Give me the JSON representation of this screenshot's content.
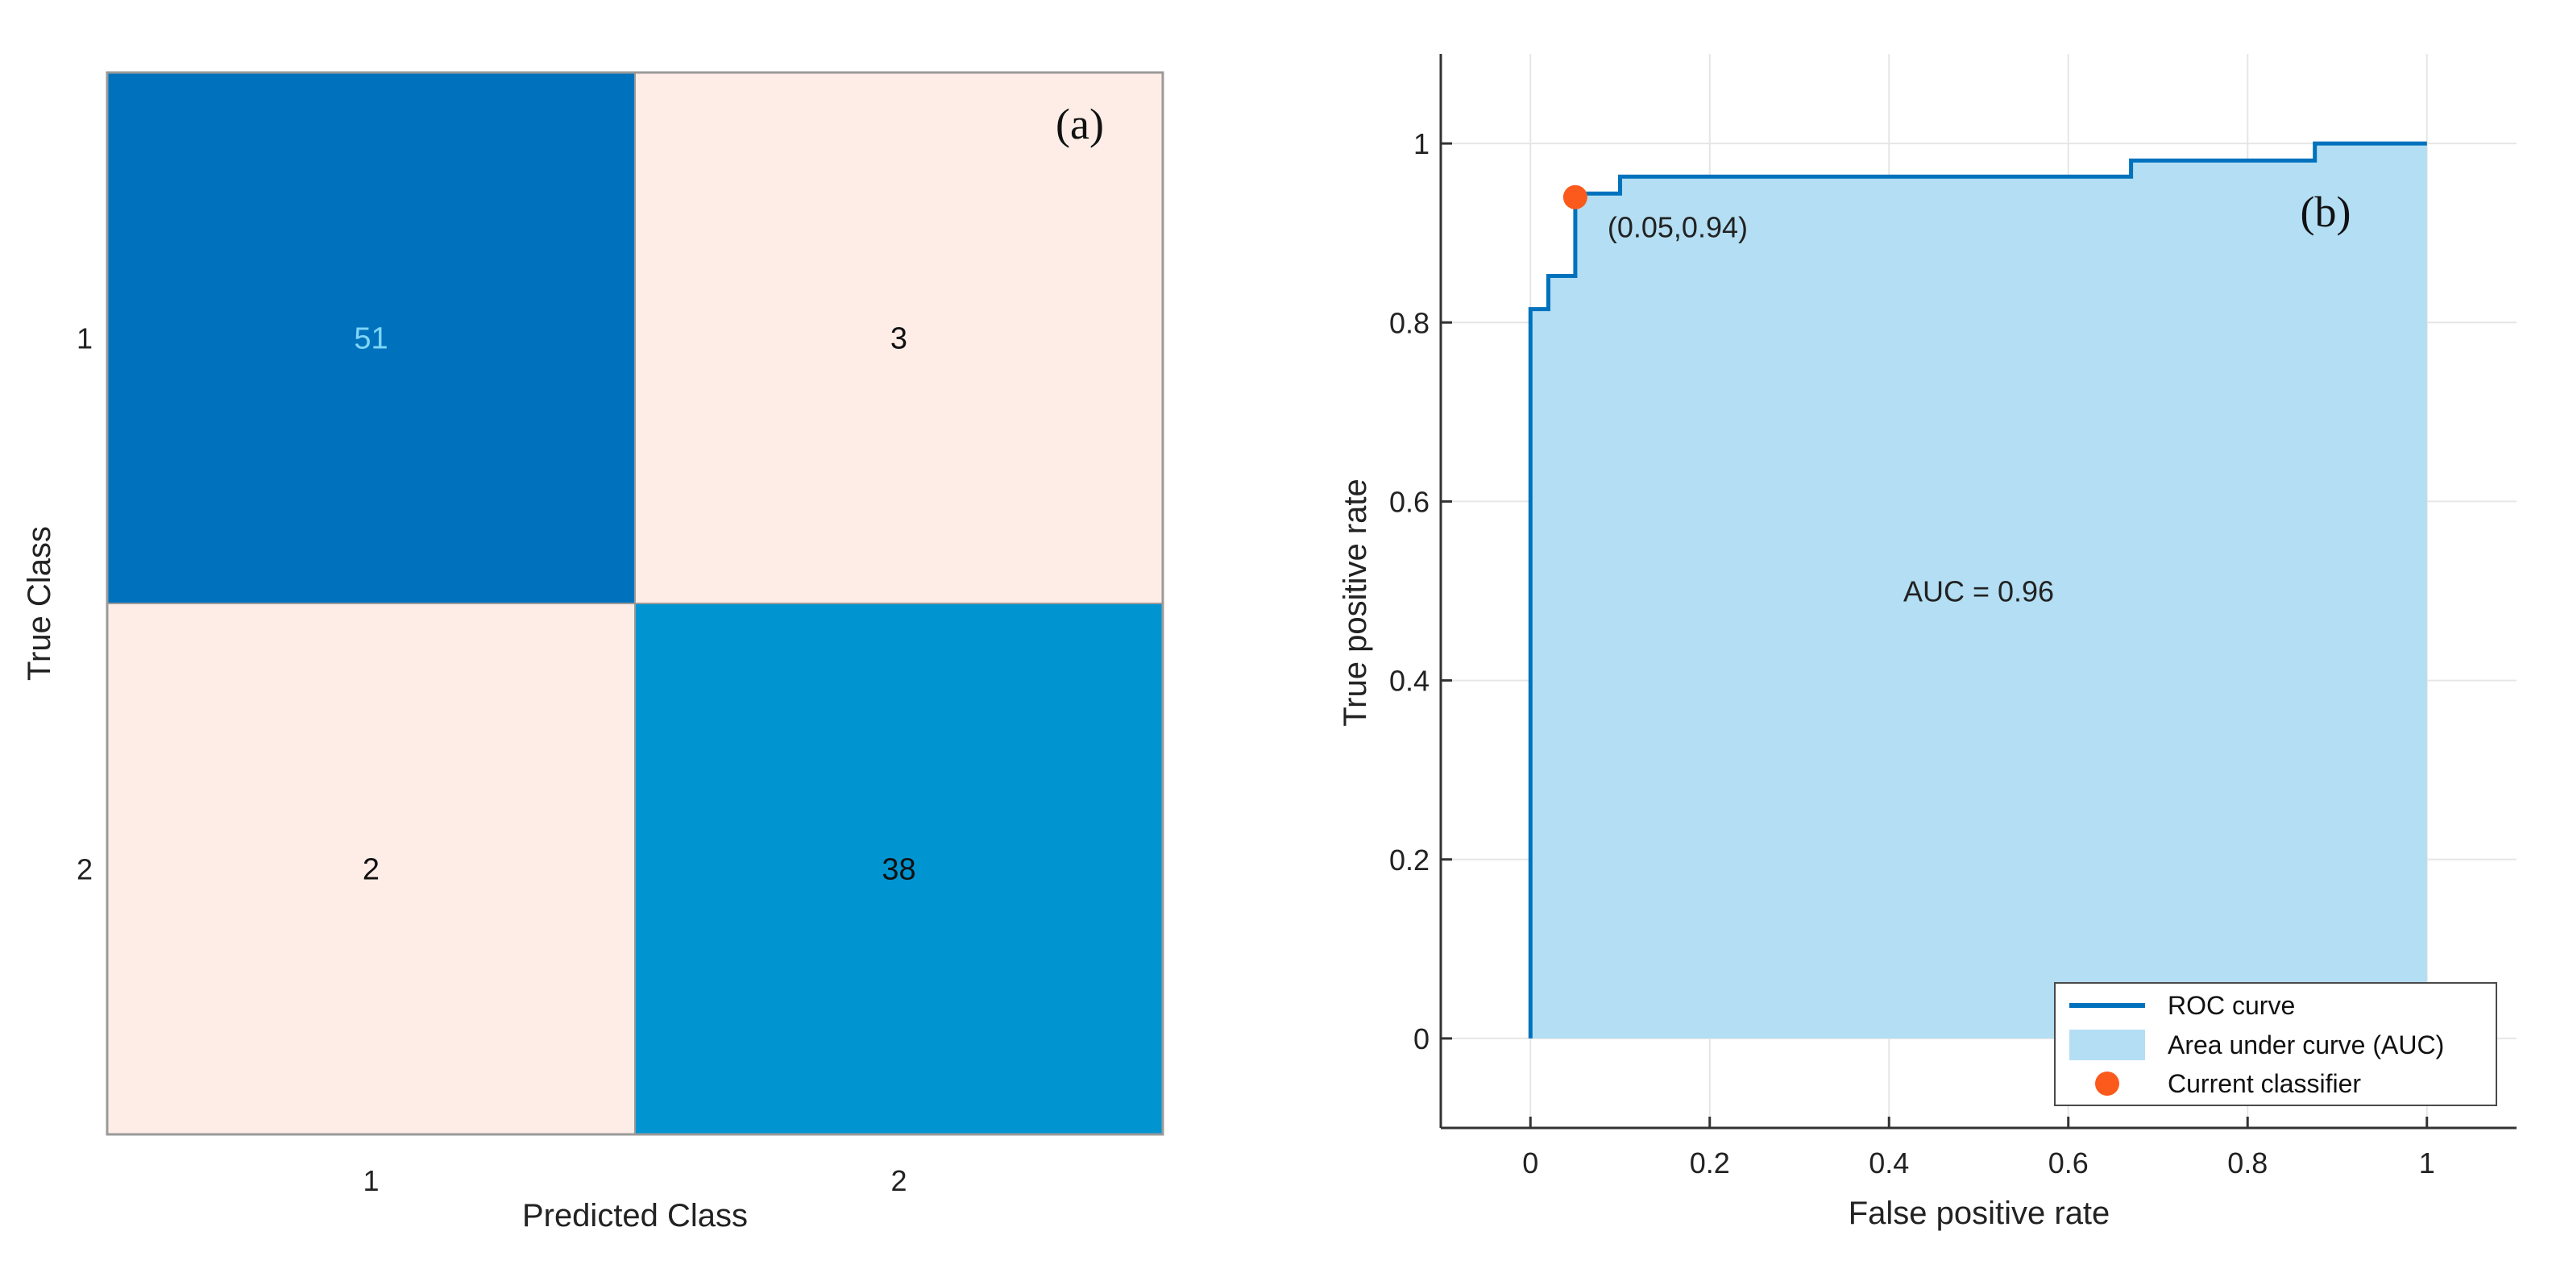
{
  "chart_data": [
    {
      "type": "heatmap",
      "panel_tag": "(a)",
      "xlabel": "Predicted Class",
      "ylabel": "True Class",
      "x_categories": [
        "1",
        "2"
      ],
      "y_categories": [
        "1",
        "2"
      ],
      "matrix": [
        [
          51,
          3
        ],
        [
          2,
          38
        ]
      ],
      "cell_colors": [
        [
          "#0072bd",
          "#fdede6"
        ],
        [
          "#fdede6",
          "#0094d0"
        ]
      ],
      "value_colors": [
        [
          "#7fd6f7",
          "#111111"
        ],
        [
          "#111111",
          "#111111"
        ]
      ]
    },
    {
      "type": "area",
      "panel_tag": "(b)",
      "xlabel": "False positive rate",
      "ylabel": "True positive rate",
      "xlim": [
        -0.1,
        1.1
      ],
      "ylim": [
        -0.1,
        1.1
      ],
      "xticks": [
        "0",
        "0.2",
        "0.4",
        "0.6",
        "0.8",
        "1"
      ],
      "yticks": [
        "0",
        "0.2",
        "0.4",
        "0.6",
        "0.8",
        "1"
      ],
      "grid": true,
      "series": [
        {
          "name": "ROC curve",
          "x": [
            0,
            0,
            0.02,
            0.02,
            0.05,
            0.05,
            0.1,
            0.1,
            0.67,
            0.67,
            0.875,
            0.875,
            1
          ],
          "y": [
            0,
            0.815,
            0.815,
            0.852,
            0.852,
            0.944,
            0.944,
            0.963,
            0.963,
            0.981,
            0.981,
            1,
            1
          ]
        }
      ],
      "area_label": "Area under curve (AUC)",
      "auc_annotation": "AUC = 0.96",
      "current_classifier": {
        "label": "Current classifier",
        "x": 0.05,
        "y": 0.94,
        "annotation": "(0.05,0.94)"
      },
      "legend_position": "bottom-right",
      "colors": {
        "curve": "#0072bd",
        "area": "#b3def3",
        "marker": "#fb5a1c",
        "grid": "#e6e6e6"
      }
    }
  ]
}
